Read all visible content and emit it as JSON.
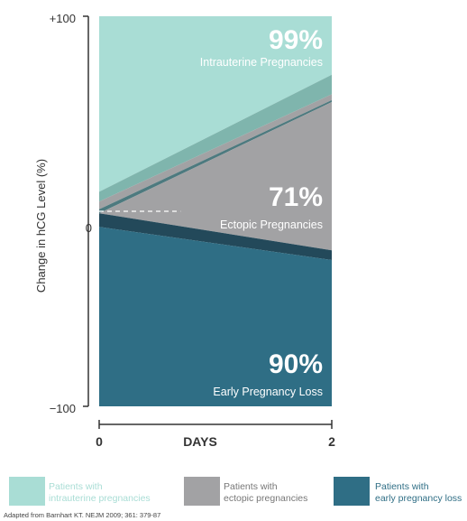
{
  "chart_data": {
    "type": "area",
    "xlabel": "DAYS",
    "ylabel": "Change in hCG Level (%)",
    "x_ticks": [
      "0",
      "2"
    ],
    "y_ticks": [
      "+100",
      "0",
      "−100"
    ],
    "xlim": [
      0,
      2
    ],
    "ylim": [
      -100,
      100
    ],
    "series": [
      {
        "name": "Patients with intrauterine pregnancies",
        "color": "#a9ddd5",
        "band_color": "#7fb5ad",
        "boundary_start": [
          10,
          5
        ],
        "boundary_end": [
          70,
          60
        ],
        "percent_label": "99%",
        "region_label": "Intrauterine Pregnancies"
      },
      {
        "name": "Patients with ectopic pregnancies",
        "color": "#a2a2a4",
        "band_color": "#4d7a7f",
        "boundary_start": [
          1,
          -1
        ],
        "boundary_end": [
          57,
          56
        ],
        "percent_label": "71%",
        "region_label": "Ectopic Pregnancies"
      },
      {
        "name": "Patients with early pregnancy loss",
        "color": "#2f6e85",
        "band_color": "#23495a",
        "boundary_start": [
          -1,
          -8
        ],
        "boundary_end": [
          -20,
          -25
        ],
        "percent_label": "90%",
        "region_label": "Early Pregnancy Loss"
      }
    ],
    "legend": [
      {
        "line1": "Patients with",
        "line2": "intrauterine pregnancies",
        "color": "#a9ddd5"
      },
      {
        "line1": "Patients with",
        "line2": "ectopic pregnancies",
        "color": "#a2a2a4"
      },
      {
        "line1": "Patients with",
        "line2": "early pregnancy loss",
        "color": "#2f6e85"
      }
    ],
    "source": "Adapted from Barnhart KT. NEJM 2009; 361: 379-87"
  }
}
